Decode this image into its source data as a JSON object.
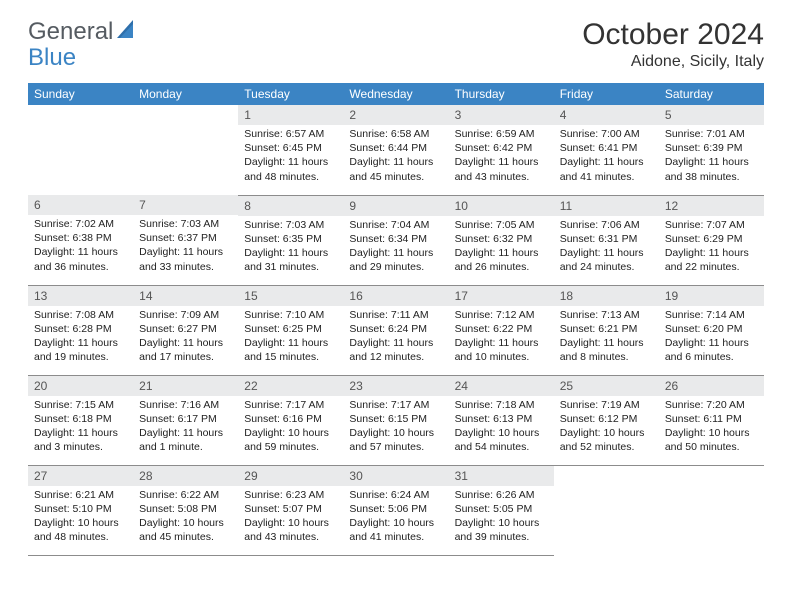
{
  "logo": {
    "text1": "General",
    "text2": "Blue"
  },
  "title": "October 2024",
  "location": "Aidone, Sicily, Italy",
  "dow": [
    "Sunday",
    "Monday",
    "Tuesday",
    "Wednesday",
    "Thursday",
    "Friday",
    "Saturday"
  ],
  "colors": {
    "header_bg": "#3b84c4",
    "header_fg": "#ffffff",
    "daynum_bg": "#e9eaeb",
    "cell_border": "#8c8c8c",
    "logo_gray": "#555b61",
    "logo_blue": "#3b84c4"
  },
  "weeks": [
    [
      null,
      null,
      {
        "n": "1",
        "sr": "Sunrise: 6:57 AM",
        "ss": "Sunset: 6:45 PM",
        "dl": "Daylight: 11 hours and 48 minutes."
      },
      {
        "n": "2",
        "sr": "Sunrise: 6:58 AM",
        "ss": "Sunset: 6:44 PM",
        "dl": "Daylight: 11 hours and 45 minutes."
      },
      {
        "n": "3",
        "sr": "Sunrise: 6:59 AM",
        "ss": "Sunset: 6:42 PM",
        "dl": "Daylight: 11 hours and 43 minutes."
      },
      {
        "n": "4",
        "sr": "Sunrise: 7:00 AM",
        "ss": "Sunset: 6:41 PM",
        "dl": "Daylight: 11 hours and 41 minutes."
      },
      {
        "n": "5",
        "sr": "Sunrise: 7:01 AM",
        "ss": "Sunset: 6:39 PM",
        "dl": "Daylight: 11 hours and 38 minutes."
      }
    ],
    [
      {
        "n": "6",
        "sr": "Sunrise: 7:02 AM",
        "ss": "Sunset: 6:38 PM",
        "dl": "Daylight: 11 hours and 36 minutes."
      },
      {
        "n": "7",
        "sr": "Sunrise: 7:03 AM",
        "ss": "Sunset: 6:37 PM",
        "dl": "Daylight: 11 hours and 33 minutes."
      },
      {
        "n": "8",
        "sr": "Sunrise: 7:03 AM",
        "ss": "Sunset: 6:35 PM",
        "dl": "Daylight: 11 hours and 31 minutes."
      },
      {
        "n": "9",
        "sr": "Sunrise: 7:04 AM",
        "ss": "Sunset: 6:34 PM",
        "dl": "Daylight: 11 hours and 29 minutes."
      },
      {
        "n": "10",
        "sr": "Sunrise: 7:05 AM",
        "ss": "Sunset: 6:32 PM",
        "dl": "Daylight: 11 hours and 26 minutes."
      },
      {
        "n": "11",
        "sr": "Sunrise: 7:06 AM",
        "ss": "Sunset: 6:31 PM",
        "dl": "Daylight: 11 hours and 24 minutes."
      },
      {
        "n": "12",
        "sr": "Sunrise: 7:07 AM",
        "ss": "Sunset: 6:29 PM",
        "dl": "Daylight: 11 hours and 22 minutes."
      }
    ],
    [
      {
        "n": "13",
        "sr": "Sunrise: 7:08 AM",
        "ss": "Sunset: 6:28 PM",
        "dl": "Daylight: 11 hours and 19 minutes."
      },
      {
        "n": "14",
        "sr": "Sunrise: 7:09 AM",
        "ss": "Sunset: 6:27 PM",
        "dl": "Daylight: 11 hours and 17 minutes."
      },
      {
        "n": "15",
        "sr": "Sunrise: 7:10 AM",
        "ss": "Sunset: 6:25 PM",
        "dl": "Daylight: 11 hours and 15 minutes."
      },
      {
        "n": "16",
        "sr": "Sunrise: 7:11 AM",
        "ss": "Sunset: 6:24 PM",
        "dl": "Daylight: 11 hours and 12 minutes."
      },
      {
        "n": "17",
        "sr": "Sunrise: 7:12 AM",
        "ss": "Sunset: 6:22 PM",
        "dl": "Daylight: 11 hours and 10 minutes."
      },
      {
        "n": "18",
        "sr": "Sunrise: 7:13 AM",
        "ss": "Sunset: 6:21 PM",
        "dl": "Daylight: 11 hours and 8 minutes."
      },
      {
        "n": "19",
        "sr": "Sunrise: 7:14 AM",
        "ss": "Sunset: 6:20 PM",
        "dl": "Daylight: 11 hours and 6 minutes."
      }
    ],
    [
      {
        "n": "20",
        "sr": "Sunrise: 7:15 AM",
        "ss": "Sunset: 6:18 PM",
        "dl": "Daylight: 11 hours and 3 minutes."
      },
      {
        "n": "21",
        "sr": "Sunrise: 7:16 AM",
        "ss": "Sunset: 6:17 PM",
        "dl": "Daylight: 11 hours and 1 minute."
      },
      {
        "n": "22",
        "sr": "Sunrise: 7:17 AM",
        "ss": "Sunset: 6:16 PM",
        "dl": "Daylight: 10 hours and 59 minutes."
      },
      {
        "n": "23",
        "sr": "Sunrise: 7:17 AM",
        "ss": "Sunset: 6:15 PM",
        "dl": "Daylight: 10 hours and 57 minutes."
      },
      {
        "n": "24",
        "sr": "Sunrise: 7:18 AM",
        "ss": "Sunset: 6:13 PM",
        "dl": "Daylight: 10 hours and 54 minutes."
      },
      {
        "n": "25",
        "sr": "Sunrise: 7:19 AM",
        "ss": "Sunset: 6:12 PM",
        "dl": "Daylight: 10 hours and 52 minutes."
      },
      {
        "n": "26",
        "sr": "Sunrise: 7:20 AM",
        "ss": "Sunset: 6:11 PM",
        "dl": "Daylight: 10 hours and 50 minutes."
      }
    ],
    [
      {
        "n": "27",
        "sr": "Sunrise: 6:21 AM",
        "ss": "Sunset: 5:10 PM",
        "dl": "Daylight: 10 hours and 48 minutes."
      },
      {
        "n": "28",
        "sr": "Sunrise: 6:22 AM",
        "ss": "Sunset: 5:08 PM",
        "dl": "Daylight: 10 hours and 45 minutes."
      },
      {
        "n": "29",
        "sr": "Sunrise: 6:23 AM",
        "ss": "Sunset: 5:07 PM",
        "dl": "Daylight: 10 hours and 43 minutes."
      },
      {
        "n": "30",
        "sr": "Sunrise: 6:24 AM",
        "ss": "Sunset: 5:06 PM",
        "dl": "Daylight: 10 hours and 41 minutes."
      },
      {
        "n": "31",
        "sr": "Sunrise: 6:26 AM",
        "ss": "Sunset: 5:05 PM",
        "dl": "Daylight: 10 hours and 39 minutes."
      },
      null,
      null
    ]
  ]
}
